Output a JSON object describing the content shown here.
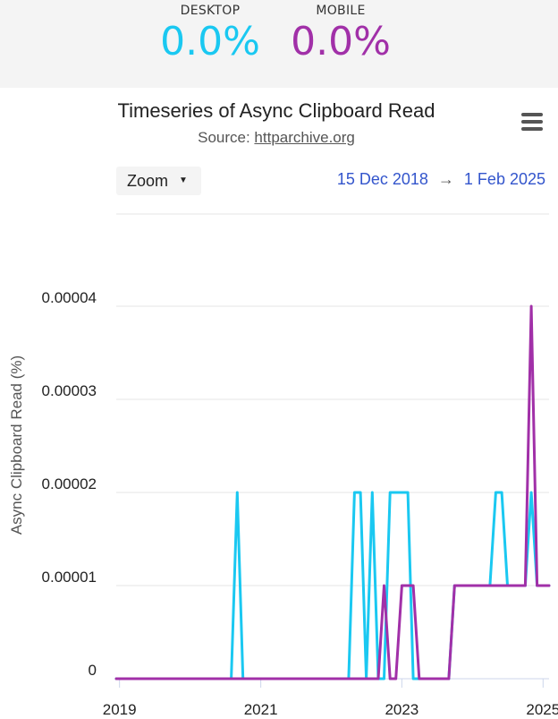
{
  "summary": {
    "desktop": {
      "label": "DESKTOP",
      "value": "0.0%",
      "color": "#1ac8f1"
    },
    "mobile": {
      "label": "MOBILE",
      "value": "0.0%",
      "color": "#a130a8"
    }
  },
  "controls": {
    "zoom_label": "Zoom",
    "range_start": "15 Dec 2018",
    "range_arrow": "→",
    "range_end": "1 Feb 2025",
    "menu_icon": "hamburger-icon"
  },
  "chart_data": {
    "type": "line",
    "title": "Timeseries of Async Clipboard Read",
    "subtitle_prefix": "Source: ",
    "subtitle_link": "httparchive.org",
    "ylabel": "Async Clipboard Read (%)",
    "xlabel": "",
    "ylim": [
      0,
      4e-05
    ],
    "xlim": [
      "2018-12-15",
      "2025-02-01"
    ],
    "y_ticks": [
      {
        "value": 0,
        "label": "0"
      },
      {
        "value": 1e-05,
        "label": "0.00001"
      },
      {
        "value": 2e-05,
        "label": "0.00002"
      },
      {
        "value": 3e-05,
        "label": "0.00003"
      },
      {
        "value": 4e-05,
        "label": "0.00004"
      }
    ],
    "x_ticks": [
      {
        "date": "2019-01-01",
        "label": "2019"
      },
      {
        "date": "2021-01-01",
        "label": "2021"
      },
      {
        "date": "2023-01-01",
        "label": "2023"
      },
      {
        "date": "2025-01-01",
        "label": "2025"
      }
    ],
    "grid": true,
    "legend": "summary above chart",
    "series": [
      {
        "name": "DESKTOP",
        "color": "#1ac8f1",
        "points": [
          [
            "2018-12-15",
            0
          ],
          [
            "2020-08-01",
            0
          ],
          [
            "2020-09-01",
            2e-05
          ],
          [
            "2020-10-01",
            0
          ],
          [
            "2022-04-01",
            0
          ],
          [
            "2022-05-01",
            2e-05
          ],
          [
            "2022-06-01",
            2e-05
          ],
          [
            "2022-07-01",
            0
          ],
          [
            "2022-08-01",
            2e-05
          ],
          [
            "2022-09-01",
            0
          ],
          [
            "2022-10-01",
            0
          ],
          [
            "2022-11-01",
            2e-05
          ],
          [
            "2022-12-01",
            2e-05
          ],
          [
            "2023-01-01",
            2e-05
          ],
          [
            "2023-02-01",
            2e-05
          ],
          [
            "2023-03-01",
            0
          ],
          [
            "2023-09-01",
            0
          ],
          [
            "2023-10-01",
            1e-05
          ],
          [
            "2024-04-01",
            1e-05
          ],
          [
            "2024-05-01",
            2e-05
          ],
          [
            "2024-06-01",
            2e-05
          ],
          [
            "2024-07-01",
            1e-05
          ],
          [
            "2024-10-01",
            1e-05
          ],
          [
            "2024-11-01",
            2e-05
          ],
          [
            "2024-12-01",
            1e-05
          ],
          [
            "2025-01-01",
            1e-05
          ],
          [
            "2025-02-01",
            1e-05
          ]
        ]
      },
      {
        "name": "MOBILE",
        "color": "#a130a8",
        "points": [
          [
            "2018-12-15",
            0
          ],
          [
            "2022-09-01",
            0
          ],
          [
            "2022-10-01",
            1e-05
          ],
          [
            "2022-11-01",
            0
          ],
          [
            "2022-12-01",
            0
          ],
          [
            "2023-01-01",
            1e-05
          ],
          [
            "2023-02-01",
            1e-05
          ],
          [
            "2023-03-01",
            1e-05
          ],
          [
            "2023-04-01",
            0
          ],
          [
            "2023-09-01",
            0
          ],
          [
            "2023-10-01",
            1e-05
          ],
          [
            "2024-10-01",
            1e-05
          ],
          [
            "2024-11-01",
            4e-05
          ],
          [
            "2024-12-01",
            1e-05
          ],
          [
            "2025-02-01",
            1e-05
          ]
        ]
      }
    ]
  }
}
